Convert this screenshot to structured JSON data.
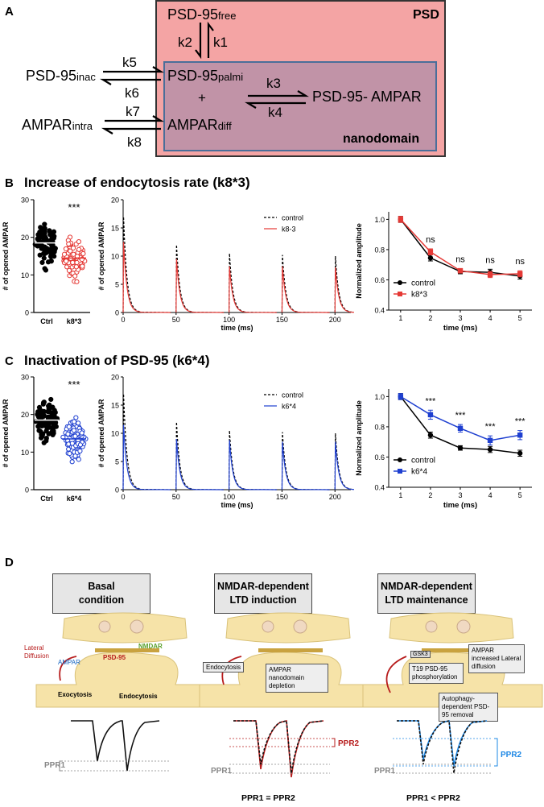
{
  "panelA": {
    "letter": "A",
    "psd_label": "PSD",
    "nanodomain_label": "nanodomain",
    "psd95_free": "PSD-95",
    "psd95_free_sub": "free",
    "psd95_palmi": "PSD-95",
    "psd95_palmi_sub": "palmi",
    "plus": "+",
    "ampar_diff": "AMPAR",
    "ampar_diff_sub": "diff",
    "psd95_ampar": "PSD-95- AMPAR",
    "psd95_inac": "PSD-95",
    "psd95_inac_sub": "inac",
    "ampar_intra": "AMPAR",
    "ampar_intra_sub": "intra",
    "k1": "k1",
    "k2": "k2",
    "k3": "k3",
    "k4": "k4",
    "k5": "k5",
    "k6": "k6",
    "k7": "k7",
    "k8": "k8",
    "colors": {
      "psd": "#f4a4a4",
      "nanodomain": "#c193a7",
      "nanodomain_border": "#4a6e9a"
    }
  },
  "panelB": {
    "letter": "B",
    "title": "Increase of endocytosis rate (k8*3)"
  },
  "panelC": {
    "letter": "C",
    "title": "Inactivation of PSD-95 (k6*4)"
  },
  "panelD": {
    "letter": "D",
    "boxes": [
      {
        "line1": "Basal",
        "line2": "condition"
      },
      {
        "line1": "NMDAR-dependent",
        "line2": "LTD induction"
      },
      {
        "line1": "NMDAR-dependent",
        "line2": "LTD maintenance"
      }
    ],
    "labels": {
      "lateral_diffusion": "Lateral Diffusion",
      "nmdar": "NMDAR",
      "psd95": "PSD-95",
      "ampar": "AMPAR",
      "exocytosis": "Exocytosis",
      "endocytosis": "Endocytosis",
      "endocytosis2": "Endocytosis",
      "nanodomain_depletion": "AMPAR nanodomain depletion",
      "gsk3": "GSK3",
      "t19": "T19 PSD-95 phosphorylation",
      "increased_diffusion": "AMPAR increased Lateral diffusion",
      "autophagy": "Autophagy-dependent PSD-95 removal"
    },
    "ppr": {
      "ppr1": "PPR1",
      "ppr2": "PPR2",
      "eq1": "PPR1 = PPR2",
      "eq2": "PPR1 < PPR2"
    }
  },
  "chart_data": [
    {
      "id": "B-scatter",
      "type": "scatter",
      "ylabel": "# of opened AMPAR",
      "ylim": [
        0,
        30
      ],
      "yticks": [
        0,
        10,
        20,
        30
      ],
      "categories": [
        "Ctrl",
        "k8*3"
      ],
      "series": [
        {
          "name": "Ctrl",
          "color": "#000000",
          "filled": true,
          "mean": 18.5,
          "min": 11,
          "max": 26
        },
        {
          "name": "k8*3",
          "color": "#e53935",
          "filled": false,
          "mean": 14.5,
          "min": 7,
          "max": 22
        }
      ],
      "annotation": "***"
    },
    {
      "id": "B-trace",
      "type": "line",
      "xlabel": "time (ms)",
      "ylabel": "# of opened AMPAR",
      "xlim": [
        0,
        215
      ],
      "ylim": [
        0,
        20
      ],
      "xticks": [
        0,
        50,
        100,
        150,
        200
      ],
      "yticks": [
        0,
        5,
        10,
        15,
        20
      ],
      "pulse_times": [
        0,
        50,
        100,
        150,
        200
      ],
      "series": [
        {
          "name": "control",
          "color": "#000000",
          "dashed": true,
          "peaks": [
            17,
            12,
            10.5,
            10.2,
            10
          ]
        },
        {
          "name": "k8-3",
          "color": "#e53935",
          "dashed": false,
          "peaks": [
            12.5,
            9.5,
            8.2,
            8.2,
            8
          ]
        }
      ]
    },
    {
      "id": "B-norm",
      "type": "line",
      "xlabel": "time (ms)",
      "ylabel": "Normalized amplitude",
      "xlim": [
        0.6,
        5.4
      ],
      "ylim": [
        0.4,
        1.05
      ],
      "xticks": [
        1,
        2,
        3,
        4,
        5
      ],
      "yticks": [
        0.4,
        0.6,
        0.8,
        1.0
      ],
      "x": [
        1,
        2,
        3,
        4,
        5
      ],
      "series": [
        {
          "name": "control",
          "color": "#000000",
          "marker": "circle",
          "values": [
            1.0,
            0.745,
            0.655,
            0.65,
            0.625
          ],
          "err": [
            0.02,
            0.02,
            0.015,
            0.02,
            0.02
          ]
        },
        {
          "name": "k8*3",
          "color": "#e53935",
          "marker": "square",
          "values": [
            1.0,
            0.785,
            0.66,
            0.635,
            0.64
          ],
          "err": [
            0.02,
            0.02,
            0.015,
            0.02,
            0.02
          ]
        }
      ],
      "point_annotations": [
        "",
        "ns",
        "ns",
        "ns",
        "ns"
      ]
    },
    {
      "id": "C-scatter",
      "type": "scatter",
      "ylabel": "# of opened AMPAR",
      "ylim": [
        0,
        30
      ],
      "yticks": [
        0,
        10,
        20,
        30
      ],
      "categories": [
        "Ctrl",
        "k6*4"
      ],
      "series": [
        {
          "name": "Ctrl",
          "color": "#000000",
          "filled": true,
          "mean": 18.5,
          "min": 11,
          "max": 26
        },
        {
          "name": "k6*4",
          "color": "#1e3fd0",
          "filled": false,
          "mean": 13.5,
          "min": 6,
          "max": 21
        }
      ],
      "annotation": "***"
    },
    {
      "id": "C-trace",
      "type": "line",
      "xlabel": "time (ms)",
      "ylabel": "# of opened AMPAR",
      "xlim": [
        0,
        215
      ],
      "ylim": [
        0,
        20
      ],
      "xticks": [
        0,
        50,
        100,
        150,
        200
      ],
      "yticks": [
        0,
        5,
        10,
        15,
        20
      ],
      "pulse_times": [
        0,
        50,
        100,
        150,
        200
      ],
      "series": [
        {
          "name": "control",
          "color": "#000000",
          "dashed": true,
          "peaks": [
            17,
            12,
            10.5,
            10.2,
            10
          ]
        },
        {
          "name": "k6*4",
          "color": "#1e3fd0",
          "dashed": false,
          "peaks": [
            11.5,
            9,
            8.8,
            8.5,
            8.5
          ]
        }
      ]
    },
    {
      "id": "C-norm",
      "type": "line",
      "xlabel": "time (ms)",
      "ylabel": "Normalized amplitude",
      "xlim": [
        0.6,
        5.4
      ],
      "ylim": [
        0.4,
        1.05
      ],
      "xticks": [
        1,
        2,
        3,
        4,
        5
      ],
      "yticks": [
        0.4,
        0.6,
        0.8,
        1.0
      ],
      "x": [
        1,
        2,
        3,
        4,
        5
      ],
      "series": [
        {
          "name": "control",
          "color": "#000000",
          "marker": "circle",
          "values": [
            1.0,
            0.745,
            0.66,
            0.65,
            0.625
          ],
          "err": [
            0.02,
            0.02,
            0.015,
            0.02,
            0.02
          ]
        },
        {
          "name": "k6*4",
          "color": "#1e3fd0",
          "marker": "square",
          "values": [
            1.0,
            0.88,
            0.79,
            0.71,
            0.745
          ],
          "err": [
            0.02,
            0.03,
            0.025,
            0.03,
            0.03
          ]
        }
      ],
      "point_annotations": [
        "",
        "***",
        "***",
        "***",
        "***"
      ]
    }
  ]
}
